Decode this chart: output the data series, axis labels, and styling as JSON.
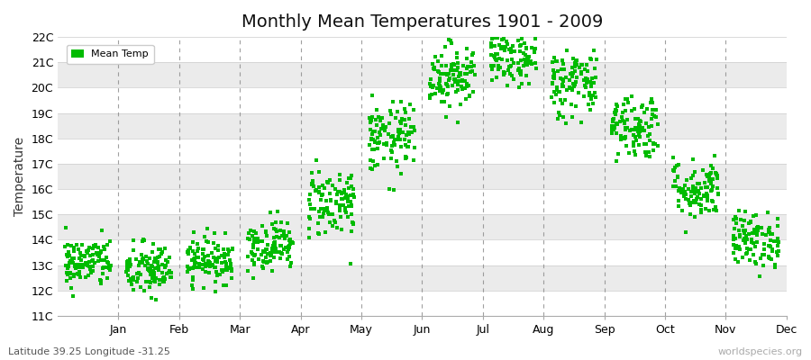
{
  "title": "Monthly Mean Temperatures 1901 - 2009",
  "ylabel": "Temperature",
  "xlabel_bottom_left": "Latitude 39.25 Longitude -31.25",
  "xlabel_bottom_right": "worldspecies.org",
  "legend_label": "Mean Temp",
  "background_color": "#ffffff",
  "plot_bg_color": "#ffffff",
  "band_colors": [
    "#ffffff",
    "#ebebeb"
  ],
  "ylim": [
    11,
    22
  ],
  "yticks": [
    11,
    12,
    13,
    14,
    15,
    16,
    17,
    18,
    19,
    20,
    21,
    22
  ],
  "ytick_labels": [
    "11C",
    "12C",
    "13C",
    "14C",
    "15C",
    "16C",
    "17C",
    "18C",
    "19C",
    "20C",
    "21C",
    "22C"
  ],
  "months": [
    "Jan",
    "Feb",
    "Mar",
    "Apr",
    "May",
    "Jun",
    "Jul",
    "Aug",
    "Sep",
    "Oct",
    "Nov",
    "Dec"
  ],
  "monthly_means": [
    13.1,
    12.8,
    13.2,
    13.8,
    15.5,
    18.0,
    20.5,
    21.2,
    20.2,
    18.5,
    16.0,
    14.0
  ],
  "monthly_stds": [
    0.5,
    0.55,
    0.45,
    0.5,
    0.7,
    0.7,
    0.65,
    0.6,
    0.7,
    0.65,
    0.6,
    0.55
  ],
  "n_years": 109,
  "random_seed": 42,
  "title_fontsize": 14,
  "tick_fontsize": 9,
  "label_fontsize": 10,
  "marker_size": 2.5,
  "dot_color_hex": "#00bb00",
  "vline_color": "#888888",
  "spine_color": "#aaaaaa"
}
